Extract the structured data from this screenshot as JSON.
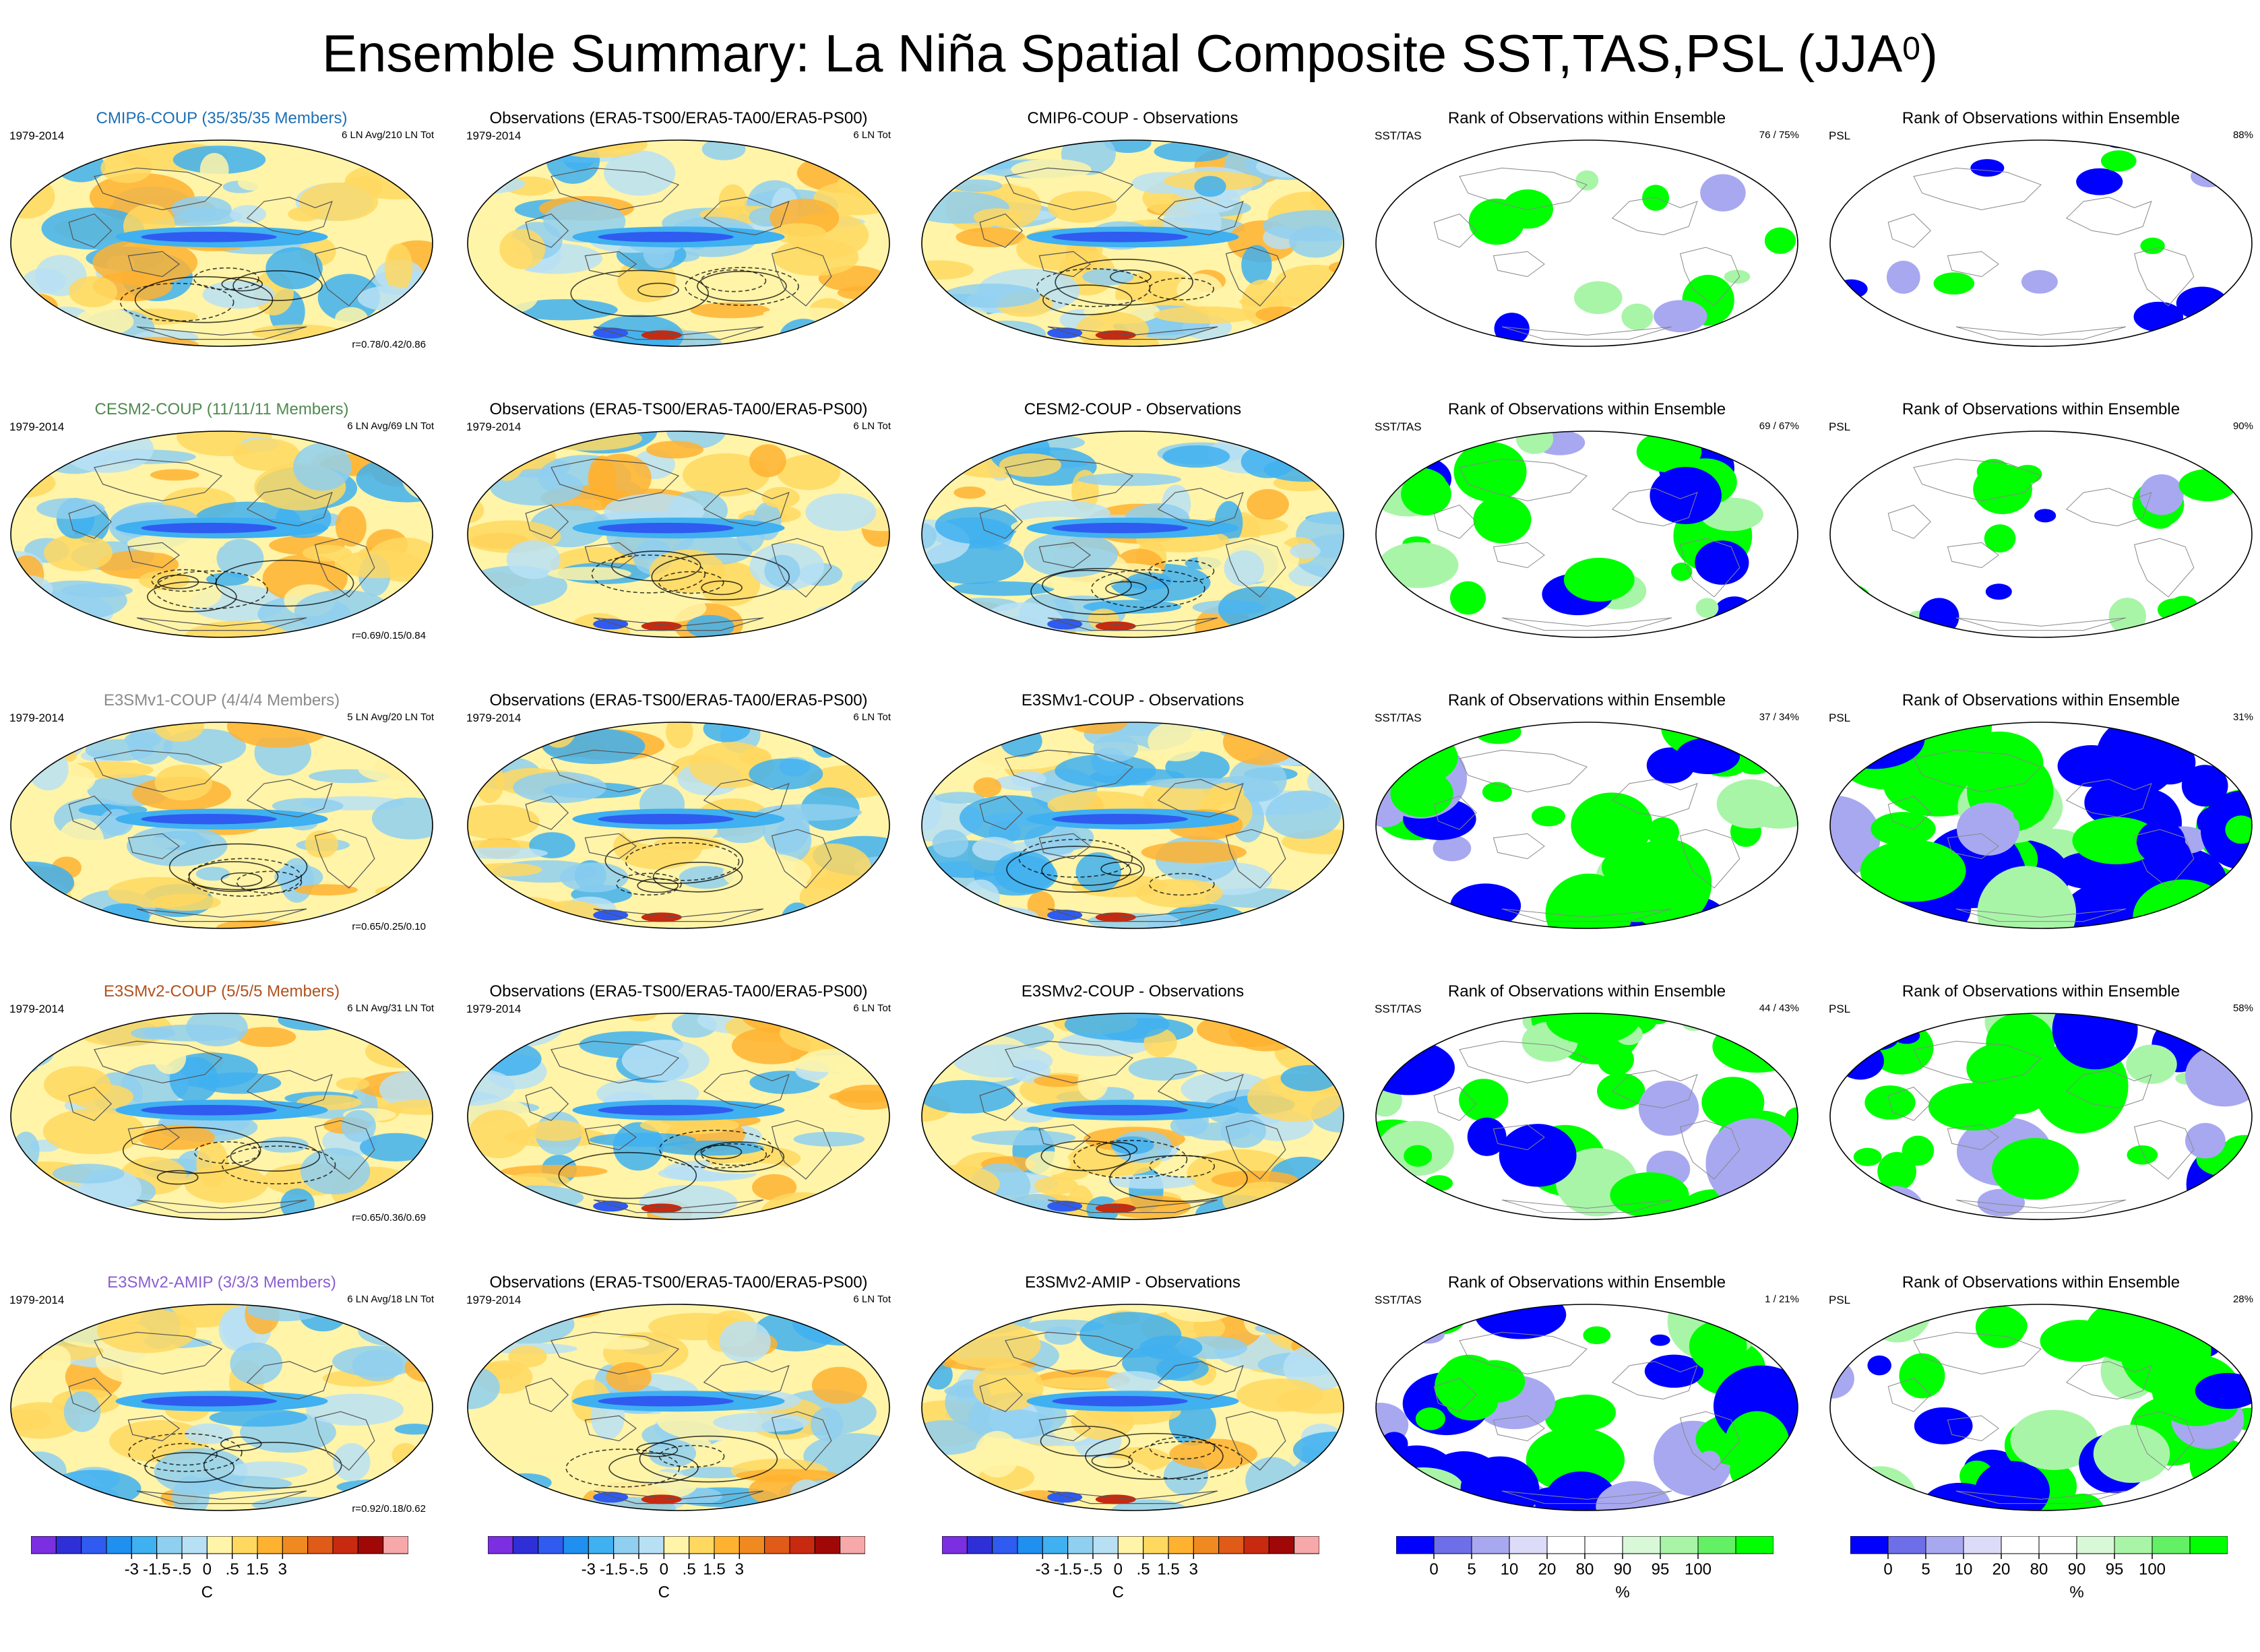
{
  "title": {
    "main": "Ensemble Summary: La Niña Spatial Composite SST,TAS,PSL (JJA",
    "sup": "0",
    "close": ")"
  },
  "colors": {
    "anomaly_scale": [
      "#7b2fe0",
      "#2f2fd8",
      "#2f5bf0",
      "#1f8ff0",
      "#3fb0f0",
      "#8fcff0",
      "#b8e0f5",
      "#fff4a8",
      "#ffd860",
      "#ffb230",
      "#f08a20",
      "#e05a18",
      "#c82a10",
      "#a00808",
      "#f7a8a8"
    ],
    "rank_scale": [
      "#0000ff",
      "#6e6ee8",
      "#a8a8f0",
      "#dcdcf8",
      "#ffffff",
      "#ffffff",
      "#d8f8d8",
      "#a8f5a8",
      "#64f064",
      "#00ff00"
    ]
  },
  "rows": [
    {
      "model": {
        "title": "CMIP6-COUP (35/35/35 Members)",
        "color": "#1e6fb5",
        "period": "1979-2014",
        "info": "6 LN Avg/210 LN Tot",
        "corr": "r=0.78/0.42/0.86"
      },
      "obs": {
        "title": "Observations (ERA5-TS00/ERA5-TA00/ERA5-PS00)",
        "period": "1979-2014",
        "info": "6 LN Tot"
      },
      "diff": {
        "title": "CMIP6-COUP - Observations"
      },
      "rank1": {
        "title": "Rank of Observations within Ensemble",
        "label": "SST/TAS",
        "pct": "76 /  75%",
        "green": 0.18,
        "blue": 0.05
      },
      "rank2": {
        "title": "Rank of Observations within Ensemble",
        "label": "PSL",
        "pct": "88%",
        "green": 0.06,
        "blue": 0.08
      }
    },
    {
      "model": {
        "title": "CESM2-COUP (11/11/11 Members)",
        "color": "#4f8a4f",
        "period": "1979-2014",
        "info": "6 LN Avg/69 LN Tot",
        "corr": "r=0.69/0.15/0.84"
      },
      "obs": {
        "title": "Observations (ERA5-TS00/ERA5-TA00/ERA5-PS00)",
        "period": "1979-2014",
        "info": "6 LN Tot"
      },
      "diff": {
        "title": "CESM2-COUP - Observations"
      },
      "rank1": {
        "title": "Rank of Observations within Ensemble",
        "label": "SST/TAS",
        "pct": "69 /  67%",
        "green": 0.42,
        "blue": 0.1
      },
      "rank2": {
        "title": "Rank of Observations within Ensemble",
        "label": "PSL",
        "pct": "90%",
        "green": 0.16,
        "blue": 0.05
      }
    },
    {
      "model": {
        "title": "E3SMv1-COUP (4/4/4 Members)",
        "color": "#8a8a8a",
        "period": "1979-2014",
        "info": "5 LN Avg/20 LN Tot",
        "corr": "r=0.65/0.25/0.10"
      },
      "obs": {
        "title": "Observations (ERA5-TS00/ERA5-TA00/ERA5-PS00)",
        "period": "1979-2014",
        "info": "6 LN Tot"
      },
      "diff": {
        "title": "E3SMv1-COUP - Observations"
      },
      "rank1": {
        "title": "Rank of Observations within Ensemble",
        "label": "SST/TAS",
        "pct": "37 /  34%",
        "green": 0.52,
        "blue": 0.18
      },
      "rank2": {
        "title": "Rank of Observations within Ensemble",
        "label": "PSL",
        "pct": "31%",
        "green": 0.45,
        "blue": 0.38
      }
    },
    {
      "model": {
        "title": "E3SMv2-COUP (5/5/5 Members)",
        "color": "#b0521e",
        "period": "1979-2014",
        "info": "6 LN Avg/31 LN Tot",
        "corr": "r=0.65/0.36/0.69"
      },
      "obs": {
        "title": "Observations (ERA5-TS00/ERA5-TA00/ERA5-PS00)",
        "period": "1979-2014",
        "info": "6 LN Tot"
      },
      "diff": {
        "title": "E3SMv2-COUP - Observations"
      },
      "rank1": {
        "title": "Rank of Observations within Ensemble",
        "label": "SST/TAS",
        "pct": "44 /  43%",
        "green": 0.5,
        "blue": 0.16
      },
      "rank2": {
        "title": "Rank of Observations within Ensemble",
        "label": "PSL",
        "pct": "58%",
        "green": 0.42,
        "blue": 0.24
      }
    },
    {
      "model": {
        "title": "E3SMv2-AMIP (3/3/3 Members)",
        "color": "#8a5fd0",
        "period": "1979-2014",
        "info": "6 LN Avg/18 LN Tot",
        "corr": "r=0.92/0.18/0.62"
      },
      "obs": {
        "title": "Observations (ERA5-TS00/ERA5-TA00/ERA5-PS00)",
        "period": "1979-2014",
        "info": "6 LN Tot"
      },
      "diff": {
        "title": "E3SMv2-AMIP - Observations"
      },
      "rank1": {
        "title": "Rank of Observations within Ensemble",
        "label": "SST/TAS",
        "pct": "1 /  21%",
        "green": 0.3,
        "blue": 0.48
      },
      "rank2": {
        "title": "Rank of Observations within Ensemble",
        "label": "PSL",
        "pct": "28%",
        "green": 0.4,
        "blue": 0.3
      }
    }
  ],
  "colorbars": {
    "anomaly": {
      "ticks": [
        "-3",
        "-1.5",
        "-.5",
        "0",
        ".5",
        "1.5",
        "3"
      ],
      "unit": "C"
    },
    "rank": {
      "ticks": [
        "0",
        "5",
        "10",
        "20",
        "80",
        "90",
        "95",
        "100"
      ],
      "unit": "%"
    }
  },
  "chart_data": [
    {
      "type": "heatmap",
      "title": "Ensemble Summary: La Niña Spatial Composite SST,TAS,PSL (JJA0)",
      "panels": "5 rows x 5 columns of Hammer-projection world maps",
      "columns": [
        "Model ensemble composite",
        "Observations (ERA5)",
        "Model - Observations",
        "Rank SST/TAS",
        "Rank PSL"
      ],
      "anomaly_colorbar": {
        "ticks": [
          -3,
          -1.5,
          -0.5,
          0,
          0.5,
          1.5,
          3
        ],
        "unit": "C"
      },
      "rank_colorbar": {
        "ticks": [
          0,
          5,
          10,
          20,
          80,
          90,
          95,
          100
        ],
        "unit": "%"
      },
      "rank_percent_sst_tas": [
        75,
        67,
        34,
        43,
        21
      ],
      "rank_percent_psl": [
        88,
        90,
        31,
        58,
        28
      ],
      "pattern_correlations": [
        "0.78/0.42/0.86",
        "0.69/0.15/0.84",
        "0.65/0.25/0.10",
        "0.65/0.36/0.69",
        "0.92/0.18/0.62"
      ]
    }
  ]
}
